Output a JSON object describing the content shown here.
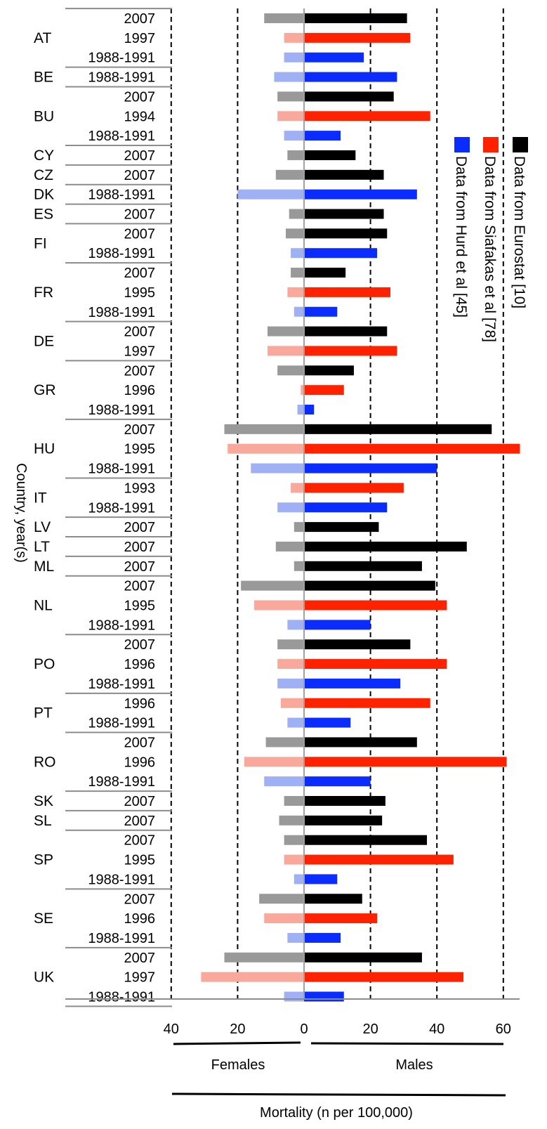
{
  "chart_data": {
    "type": "bar",
    "orientation": "horizontal",
    "ylabel": "Country, year(s)",
    "xlabel": "Mortality (n per 100,000)",
    "group_labels": {
      "left": "Females",
      "right": "Males"
    },
    "x_ticks": [
      {
        "value": -40,
        "label": "40"
      },
      {
        "value": -20,
        "label": "20"
      },
      {
        "value": 0,
        "label": "0"
      },
      {
        "value": 20,
        "label": "20"
      },
      {
        "value": 40,
        "label": "40"
      },
      {
        "value": 60,
        "label": "60"
      }
    ],
    "xlim": [
      -40,
      65
    ],
    "grid_lines": [
      -40,
      -20,
      20,
      40,
      60
    ],
    "legend": {
      "placement": "right",
      "entries": [
        {
          "source": "eurostat",
          "label": "Data from Eurostat [10]"
        },
        {
          "source": "siafakas",
          "label": "Data from Siafakas et al [78]"
        },
        {
          "source": "hurd",
          "label": "Data from Hurd et al [45]"
        }
      ]
    },
    "colors": {
      "eurostat": {
        "male": "#000000",
        "female": "#999999"
      },
      "siafakas": {
        "male": "#ff2200",
        "female": "#f9a99b"
      },
      "hurd": {
        "male": "#0a2cff",
        "female": "#a0b0f5"
      }
    },
    "groups": [
      {
        "country": "AT",
        "rows": [
          {
            "year": "2007",
            "source": "eurostat",
            "female": 12,
            "male": 31
          },
          {
            "year": "1997",
            "source": "siafakas",
            "female": 6,
            "male": 32
          },
          {
            "year": "1988-1991",
            "source": "hurd",
            "female": 6,
            "male": 18
          }
        ]
      },
      {
        "country": "BE",
        "rows": [
          {
            "year": "1988-1991",
            "source": "hurd",
            "female": 9,
            "male": 28
          }
        ]
      },
      {
        "country": "BU",
        "rows": [
          {
            "year": "2007",
            "source": "eurostat",
            "female": 8,
            "male": 27
          },
          {
            "year": "1994",
            "source": "siafakas",
            "female": 8,
            "male": 38
          },
          {
            "year": "1988-1991",
            "source": "hurd",
            "female": 6,
            "male": 11
          }
        ]
      },
      {
        "country": "CY",
        "rows": [
          {
            "year": "2007",
            "source": "eurostat",
            "female": 5,
            "male": 15.5
          }
        ]
      },
      {
        "country": "CZ",
        "rows": [
          {
            "year": "2007",
            "source": "eurostat",
            "female": 8.5,
            "male": 24
          }
        ]
      },
      {
        "country": "DK",
        "rows": [
          {
            "year": "1988-1991",
            "source": "hurd",
            "female": 20,
            "male": 34
          }
        ]
      },
      {
        "country": "ES",
        "rows": [
          {
            "year": "2007",
            "source": "eurostat",
            "female": 4.5,
            "male": 24
          }
        ]
      },
      {
        "country": "FI",
        "rows": [
          {
            "year": "2007",
            "source": "eurostat",
            "female": 5.5,
            "male": 25
          },
          {
            "year": "1988-1991",
            "source": "hurd",
            "female": 4,
            "male": 22
          }
        ]
      },
      {
        "country": "FR",
        "rows": [
          {
            "year": "2007",
            "source": "eurostat",
            "female": 4,
            "male": 12.5
          },
          {
            "year": "1995",
            "source": "siafakas",
            "female": 5,
            "male": 26
          },
          {
            "year": "1988-1991",
            "source": "hurd",
            "female": 3,
            "male": 10
          }
        ]
      },
      {
        "country": "DE",
        "rows": [
          {
            "year": "2007",
            "source": "eurostat",
            "female": 11,
            "male": 25
          },
          {
            "year": "1997",
            "source": "siafakas",
            "female": 11,
            "male": 28
          }
        ]
      },
      {
        "country": "GR",
        "rows": [
          {
            "year": "2007",
            "source": "eurostat",
            "female": 8,
            "male": 15
          },
          {
            "year": "1996",
            "source": "siafakas",
            "female": 1,
            "male": 12
          },
          {
            "year": "1988-1991",
            "source": "hurd",
            "female": 2,
            "male": 3
          }
        ]
      },
      {
        "country": "HU",
        "rows": [
          {
            "year": "2007",
            "source": "eurostat",
            "female": 24,
            "male": 56.5
          },
          {
            "year": "1995",
            "source": "siafakas",
            "female": 23,
            "male": 65
          },
          {
            "year": "1988-1991",
            "source": "hurd",
            "female": 16,
            "male": 40
          }
        ]
      },
      {
        "country": "IT",
        "rows": [
          {
            "year": "1993",
            "source": "siafakas",
            "female": 4,
            "male": 30
          },
          {
            "year": "1988-1991",
            "source": "hurd",
            "female": 8,
            "male": 25
          }
        ]
      },
      {
        "country": "LV",
        "rows": [
          {
            "year": "2007",
            "source": "eurostat",
            "female": 3,
            "male": 22.5
          }
        ]
      },
      {
        "country": "LT",
        "rows": [
          {
            "year": "2007",
            "source": "eurostat",
            "female": 8.5,
            "male": 49
          }
        ]
      },
      {
        "country": "ML",
        "rows": [
          {
            "year": "2007",
            "source": "eurostat",
            "female": 3,
            "male": 35.5
          }
        ]
      },
      {
        "country": "NL",
        "rows": [
          {
            "year": "2007",
            "source": "eurostat",
            "female": 19,
            "male": 39.5
          },
          {
            "year": "1995",
            "source": "siafakas",
            "female": 15,
            "male": 43
          },
          {
            "year": "1988-1991",
            "source": "hurd",
            "female": 5,
            "male": 20
          }
        ]
      },
      {
        "country": "PO",
        "rows": [
          {
            "year": "2007",
            "source": "eurostat",
            "female": 8,
            "male": 32
          },
          {
            "year": "1996",
            "source": "siafakas",
            "female": 8,
            "male": 43
          },
          {
            "year": "1988-1991",
            "source": "hurd",
            "female": 8,
            "male": 29
          }
        ]
      },
      {
        "country": "PT",
        "rows": [
          {
            "year": "1996",
            "source": "siafakas",
            "female": 7,
            "male": 38
          },
          {
            "year": "1988-1991",
            "source": "hurd",
            "female": 5,
            "male": 14
          }
        ]
      },
      {
        "country": "RO",
        "rows": [
          {
            "year": "2007",
            "source": "eurostat",
            "female": 11.5,
            "male": 34
          },
          {
            "year": "1996",
            "source": "siafakas",
            "female": 18,
            "male": 61
          },
          {
            "year": "1988-1991",
            "source": "hurd",
            "female": 12,
            "male": 20
          }
        ]
      },
      {
        "country": "SK",
        "rows": [
          {
            "year": "2007",
            "source": "eurostat",
            "female": 6,
            "male": 24.5
          }
        ]
      },
      {
        "country": "SL",
        "rows": [
          {
            "year": "2007",
            "source": "eurostat",
            "female": 7.5,
            "male": 23.5
          }
        ]
      },
      {
        "country": "SP",
        "rows": [
          {
            "year": "2007",
            "source": "eurostat",
            "female": 6,
            "male": 37
          },
          {
            "year": "1995",
            "source": "siafakas",
            "female": 6,
            "male": 45
          },
          {
            "year": "1988-1991",
            "source": "hurd",
            "female": 3,
            "male": 10
          }
        ]
      },
      {
        "country": "SE",
        "rows": [
          {
            "year": "2007",
            "source": "eurostat",
            "female": 13.5,
            "male": 17.5
          },
          {
            "year": "1996",
            "source": "siafakas",
            "female": 12,
            "male": 22
          },
          {
            "year": "1988-1991",
            "source": "hurd",
            "female": 5,
            "male": 11
          }
        ]
      },
      {
        "country": "UK",
        "rows": [
          {
            "year": "2007",
            "source": "eurostat",
            "female": 24,
            "male": 35.5
          },
          {
            "year": "1997",
            "source": "siafakas",
            "female": 31,
            "male": 48
          },
          {
            "year": "1988-1991",
            "source": "hurd",
            "female": 6,
            "male": 12
          }
        ]
      }
    ]
  }
}
